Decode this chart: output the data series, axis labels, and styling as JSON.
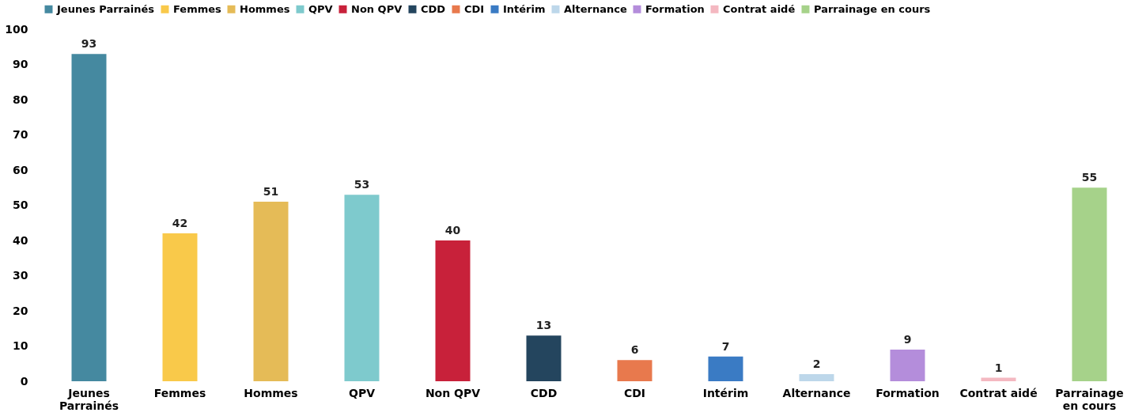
{
  "chart_data": {
    "type": "bar",
    "categories": [
      "Jeunes Parrainés",
      "Femmes",
      "Hommes",
      "QPV",
      "Non QPV",
      "CDD",
      "CDI",
      "Intérim",
      "Alternance",
      "Formation",
      "Contrat aidé",
      "Parrainage en cours"
    ],
    "series": [
      {
        "name": "Jeunes Parrainés",
        "color": "#4589a0",
        "values": [
          93,
          null,
          null,
          null,
          null,
          null,
          null,
          null,
          null,
          null,
          null,
          null
        ]
      },
      {
        "name": "Femmes",
        "color": "#f9c94a",
        "values": [
          null,
          42,
          null,
          null,
          null,
          null,
          null,
          null,
          null,
          null,
          null,
          null
        ]
      },
      {
        "name": "Hommes",
        "color": "#e5bb57",
        "values": [
          null,
          null,
          51,
          null,
          null,
          null,
          null,
          null,
          null,
          null,
          null,
          null
        ]
      },
      {
        "name": "QPV",
        "color": "#7ecacd",
        "values": [
          null,
          null,
          null,
          53,
          null,
          null,
          null,
          null,
          null,
          null,
          null,
          null
        ]
      },
      {
        "name": "Non QPV",
        "color": "#c8213a",
        "values": [
          null,
          null,
          null,
          null,
          40,
          null,
          null,
          null,
          null,
          null,
          null,
          null
        ]
      },
      {
        "name": "CDD",
        "color": "#24455e",
        "values": [
          null,
          null,
          null,
          null,
          null,
          13,
          null,
          null,
          null,
          null,
          null,
          null
        ]
      },
      {
        "name": "CDI",
        "color": "#e8794d",
        "values": [
          null,
          null,
          null,
          null,
          null,
          null,
          6,
          null,
          null,
          null,
          null,
          null
        ]
      },
      {
        "name": "Intérim",
        "color": "#3a7bc4",
        "values": [
          null,
          null,
          null,
          null,
          null,
          null,
          null,
          7,
          null,
          null,
          null,
          null
        ]
      },
      {
        "name": "Alternance",
        "color": "#bdd7ea",
        "values": [
          null,
          null,
          null,
          null,
          null,
          null,
          null,
          null,
          2,
          null,
          null,
          null
        ]
      },
      {
        "name": "Formation",
        "color": "#b48ddb",
        "values": [
          null,
          null,
          null,
          null,
          null,
          null,
          null,
          null,
          null,
          9,
          null,
          null
        ]
      },
      {
        "name": "Contrat aidé",
        "color": "#f4b8c1",
        "values": [
          null,
          null,
          null,
          null,
          null,
          null,
          null,
          null,
          null,
          null,
          1,
          null
        ]
      },
      {
        "name": "Parrainage en cours",
        "color": "#a6d28a",
        "values": [
          null,
          null,
          null,
          null,
          null,
          null,
          null,
          null,
          null,
          null,
          null,
          55
        ]
      }
    ],
    "ylim": [
      0,
      100
    ],
    "yticks": [
      0,
      10,
      20,
      30,
      40,
      50,
      60,
      70,
      80,
      90,
      100
    ],
    "grid": false,
    "legend": "top",
    "data_labels": true
  }
}
